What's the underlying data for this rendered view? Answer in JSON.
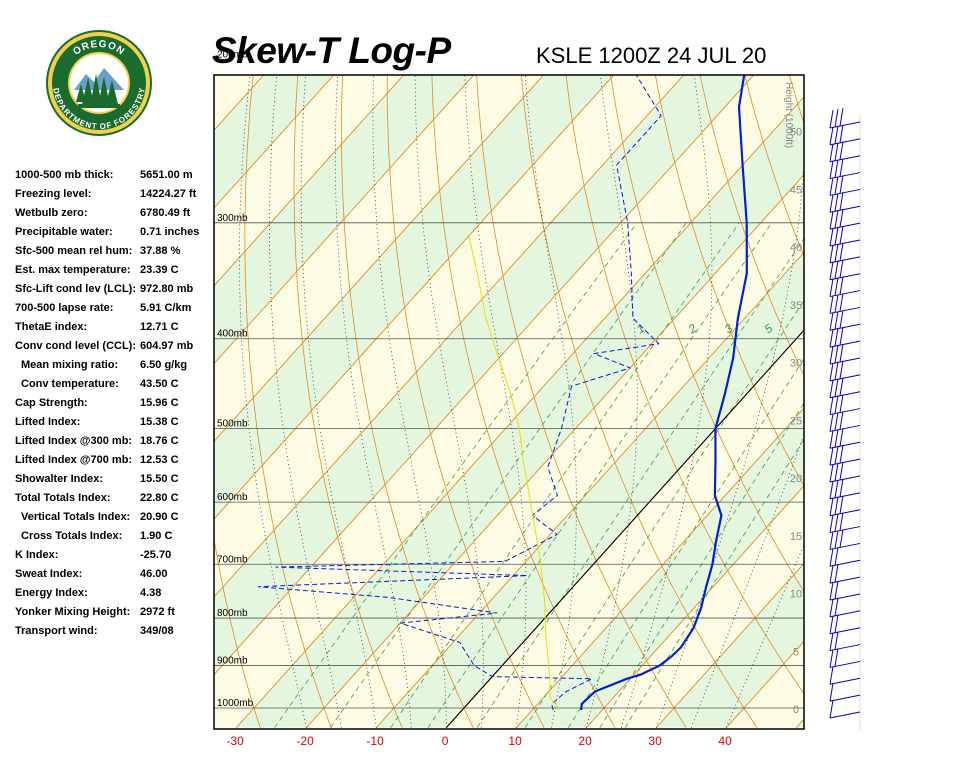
{
  "header": {
    "title": "Skew-T Log-P",
    "subtitle": "KSLE 1200Z 24 JUL 20"
  },
  "logo": {
    "top_text": "OREGON",
    "bottom_text": "DEPARTMENT OF FORESTRY",
    "ring_color": "#1a6b2e",
    "inner_color": "#f2d14a"
  },
  "indices": [
    {
      "label": "1000-500 mb thick:",
      "value": "5651.00 m"
    },
    {
      "label": "Freezing level:",
      "value": "14224.27 ft"
    },
    {
      "label": "Wetbulb zero:",
      "value": "6780.49 ft"
    },
    {
      "label": "Precipitable water:",
      "value": "0.71 inches"
    },
    {
      "label": "Sfc-500 mean rel hum:",
      "value": "37.88 %"
    },
    {
      "label": "Est. max temperature:",
      "value": "23.39 C"
    },
    {
      "label": "Sfc-Lift cond lev (LCL):",
      "value": "972.80 mb"
    },
    {
      "label": "700-500 lapse rate:",
      "value": "5.91 C/km"
    },
    {
      "label": "ThetaE index:",
      "value": "12.71 C"
    },
    {
      "label": "Conv cond level (CCL):",
      "value": "604.97 mb"
    },
    {
      "label": "Mean mixing ratio:",
      "value": "6.50 g/kg",
      "indent": true
    },
    {
      "label": "Conv temperature:",
      "value": "43.50 C",
      "indent": true
    },
    {
      "label": "Cap Strength:",
      "value": "15.96 C"
    },
    {
      "label": "Lifted Index:",
      "value": "15.38 C"
    },
    {
      "label": "Lifted Index @300 mb:",
      "value": "18.76 C"
    },
    {
      "label": "Lifted Index @700 mb:",
      "value": "12.53 C"
    },
    {
      "label": "Showalter Index:",
      "value": "15.50 C"
    },
    {
      "label": "Total Totals Index:",
      "value": "22.80 C"
    },
    {
      "label": "Vertical Totals Index:",
      "value": "20.90 C",
      "indent": true
    },
    {
      "label": "Cross Totals Index:",
      "value": "1.90 C",
      "indent": true
    },
    {
      "label": "K Index:",
      "value": "-25.70"
    },
    {
      "label": "Sweat Index:",
      "value": "46.00"
    },
    {
      "label": "Energy Index:",
      "value": "4.38"
    },
    {
      "label": "Yonker Mixing Height:",
      "value": "2972 ft"
    },
    {
      "label": "Transport wind:",
      "value": "349/08"
    }
  ],
  "chart_data": {
    "type": "line",
    "subtype": "skew-t log-p",
    "title": "Skew-T Log-P",
    "subtitle": "KSLE 1200Z 24 JUL 20",
    "x_ticks": [
      -30,
      -20,
      -10,
      0,
      10,
      20,
      30,
      40
    ],
    "pressure_levels": [
      {
        "p": 1000,
        "label": "1000mb"
      },
      {
        "p": 900,
        "label": "900mb"
      },
      {
        "p": 800,
        "label": "800mb"
      },
      {
        "p": 700,
        "label": "700mb"
      },
      {
        "p": 600,
        "label": "600mb"
      },
      {
        "p": 500,
        "label": "500mb"
      },
      {
        "p": 400,
        "label": "400mb"
      },
      {
        "p": 300,
        "label": "300mb"
      },
      {
        "p": 200,
        "label": "200mb"
      }
    ],
    "height_axis_label": "Height (1000ft)",
    "height_ticks": [
      0,
      5,
      10,
      15,
      20,
      25,
      30,
      35,
      40,
      45,
      50
    ],
    "mixing_ratio_labels": [
      "1",
      "2",
      "3",
      "5"
    ],
    "grid": true,
    "background_colors": [
      "#fdfbe3",
      "#e5f6df"
    ],
    "series": [
      {
        "name": "Temperature",
        "color": "#0022cc",
        "style": "solid",
        "points": [
          {
            "p": 1005,
            "t": 17.0
          },
          {
            "p": 990,
            "t": 16.3
          },
          {
            "p": 960,
            "t": 16.6
          },
          {
            "p": 930,
            "t": 19.5
          },
          {
            "p": 920,
            "t": 21.0
          },
          {
            "p": 900,
            "t": 22.5
          },
          {
            "p": 880,
            "t": 23.0
          },
          {
            "p": 860,
            "t": 23.2
          },
          {
            "p": 820,
            "t": 22.5
          },
          {
            "p": 780,
            "t": 21.0
          },
          {
            "p": 740,
            "t": 19.0
          },
          {
            "p": 700,
            "t": 17.0
          },
          {
            "p": 660,
            "t": 14.5
          },
          {
            "p": 620,
            "t": 12.0
          },
          {
            "p": 590,
            "t": 8.5
          },
          {
            "p": 540,
            "t": 4.0
          },
          {
            "p": 500,
            "t": 0.0
          },
          {
            "p": 460,
            "t": -3.0
          },
          {
            "p": 420,
            "t": -6.5
          },
          {
            "p": 380,
            "t": -11.0
          },
          {
            "p": 340,
            "t": -15.5
          },
          {
            "p": 300,
            "t": -22.0
          },
          {
            "p": 260,
            "t": -30.0
          },
          {
            "p": 225,
            "t": -38.0
          },
          {
            "p": 200,
            "t": -43.0
          },
          {
            "p": 180,
            "t": -46.0
          },
          {
            "p": 175,
            "t": -43.0
          },
          {
            "p": 166,
            "t": -43.0
          }
        ]
      },
      {
        "name": "Dewpoint",
        "color": "#0022cc",
        "style": "dashed",
        "points": [
          {
            "p": 1005,
            "t": 13.0
          },
          {
            "p": 990,
            "t": 12.0
          },
          {
            "p": 960,
            "t": 12.5
          },
          {
            "p": 930,
            "t": 14.5
          },
          {
            "p": 925,
            "t": 0.0
          },
          {
            "p": 900,
            "t": -4.0
          },
          {
            "p": 870,
            "t": -7.0
          },
          {
            "p": 850,
            "t": -9.0
          },
          {
            "p": 810,
            "t": -20.0
          },
          {
            "p": 790,
            "t": -7.5
          },
          {
            "p": 760,
            "t": -25.0
          },
          {
            "p": 740,
            "t": -45.0
          },
          {
            "p": 720,
            "t": -8.0
          },
          {
            "p": 705,
            "t": -45.0
          },
          {
            "p": 695,
            "t": -13.0
          },
          {
            "p": 650,
            "t": -9.0
          },
          {
            "p": 620,
            "t": -15.0
          },
          {
            "p": 590,
            "t": -14.0
          },
          {
            "p": 550,
            "t": -19.0
          },
          {
            "p": 500,
            "t": -22.0
          },
          {
            "p": 450,
            "t": -26.0
          },
          {
            "p": 430,
            "t": -20.0
          },
          {
            "p": 415,
            "t": -27.0
          },
          {
            "p": 405,
            "t": -19.0
          },
          {
            "p": 380,
            "t": -26.0
          },
          {
            "p": 340,
            "t": -32.0
          },
          {
            "p": 300,
            "t": -39.0
          },
          {
            "p": 260,
            "t": -48.0
          },
          {
            "p": 230,
            "t": -48.0
          },
          {
            "p": 205,
            "t": -58.0
          },
          {
            "p": 180,
            "t": -60.0
          },
          {
            "p": 170,
            "t": -55.0
          }
        ]
      },
      {
        "name": "Parcel",
        "color": "#e6e000",
        "style": "solid",
        "points": [
          {
            "p": 1005,
            "t": 14.0
          },
          {
            "p": 975,
            "t": 11.0
          },
          {
            "p": 930,
            "t": 8.5
          },
          {
            "p": 890,
            "t": 6.0
          },
          {
            "p": 830,
            "t": 2.0
          },
          {
            "p": 770,
            "t": -2.0
          },
          {
            "p": 700,
            "t": -7.5
          },
          {
            "p": 640,
            "t": -13.0
          },
          {
            "p": 590,
            "t": -18.0
          },
          {
            "p": 540,
            "t": -23.5
          },
          {
            "p": 500,
            "t": -28.0
          },
          {
            "p": 460,
            "t": -33.5
          },
          {
            "p": 420,
            "t": -40.0
          },
          {
            "p": 380,
            "t": -47.0
          },
          {
            "p": 340,
            "t": -54.0
          },
          {
            "p": 310,
            "t": -60.0
          }
        ]
      }
    ],
    "wind_barbs": {
      "color": "#0000cc",
      "count": 36
    }
  }
}
